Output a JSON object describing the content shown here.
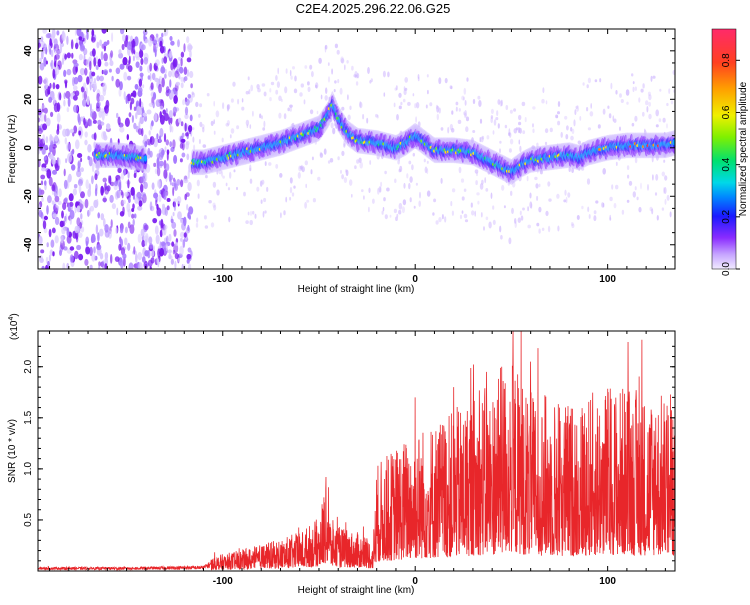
{
  "title": "C2E4.2025.296.22.06.G25",
  "colors": {
    "snr_line": "#e8262a",
    "spectrum_low": "#cdb4ff",
    "spectrum_mid": "#7a1cf0",
    "frame": "#000000"
  },
  "chart_data": [
    {
      "type": "heatmap",
      "name": "spectrogram",
      "xlabel": "Height of straight line (km)",
      "ylabel": "Frequency (Hz)",
      "xlim": [
        -196,
        135
      ],
      "ylim": [
        -50,
        49
      ],
      "xticks": [
        -100,
        0,
        100
      ],
      "xtick_labels": [
        "-100",
        "0",
        "100"
      ],
      "yticks": [
        -40,
        -20,
        0,
        20,
        40
      ],
      "ytick_labels": [
        "-40",
        "-20",
        "0",
        "20",
        "40"
      ],
      "noise_region_km": [
        -196,
        -116
      ],
      "ridge": {
        "x": [
          -166,
          -155,
          -145,
          -140,
          -116,
          -110,
          -100,
          -90,
          -80,
          -70,
          -60,
          -50,
          -45,
          -43,
          -40,
          -35,
          -30,
          -20,
          -10,
          -5,
          0,
          5,
          10,
          20,
          30,
          35,
          40,
          45,
          50,
          55,
          60,
          70,
          80,
          85,
          90,
          100,
          110,
          120,
          130,
          135
        ],
        "y": [
          -3,
          -3,
          -4,
          -5,
          -6,
          -6,
          -4,
          -2,
          0,
          2,
          5,
          8,
          14,
          18,
          12,
          6,
          3,
          2,
          0,
          2,
          5,
          2,
          -1,
          -1,
          -2,
          -4,
          -6,
          -8,
          -10,
          -7,
          -5,
          -4,
          -3,
          -4,
          -2,
          0,
          1,
          1,
          1,
          2
        ]
      },
      "colorbar": {
        "label": "Normalized spectral amplitude",
        "ticks": [
          0.0,
          0.2,
          0.4,
          0.6,
          0.8
        ],
        "tick_labels": [
          "0.0",
          "0.2",
          "0.4",
          "0.6",
          "0.8"
        ],
        "range": [
          0,
          0.92
        ]
      }
    },
    {
      "type": "line",
      "name": "snr",
      "xlabel": "Height of straight line (km)",
      "ylabel": "SNR (10 * v/v)",
      "scale_label": "(x10",
      "scale_exponent": "4",
      "scale_close": ")",
      "xlim": [
        -196,
        135
      ],
      "ylim": [
        0,
        2.35
      ],
      "xticks": [
        -100,
        0,
        100
      ],
      "xtick_labels": [
        "-100",
        "0",
        "100"
      ],
      "yticks": [
        0.5,
        1.0,
        1.5,
        2.0
      ],
      "ytick_labels": [
        "0.5",
        "1.0",
        "1.5",
        "2.0"
      ],
      "envelope": {
        "x": [
          -196,
          -150,
          -110,
          -106,
          -90,
          -70,
          -60,
          -50,
          -46,
          -44,
          -40,
          -25,
          -22,
          -20,
          -10,
          0,
          10,
          20,
          30,
          40,
          45,
          50,
          55,
          60,
          70,
          80,
          90,
          100,
          110,
          120,
          130,
          135
        ],
        "y": [
          0.03,
          0.03,
          0.04,
          0.08,
          0.12,
          0.18,
          0.22,
          0.3,
          0.55,
          0.3,
          0.25,
          0.2,
          0.15,
          0.6,
          0.7,
          0.8,
          0.85,
          0.9,
          1.0,
          1.05,
          1.15,
          1.2,
          1.1,
          1.0,
          1.0,
          0.95,
          1.0,
          1.05,
          1.05,
          1.0,
          1.0,
          1.0
        ]
      },
      "peaks": {
        "x": [
          -45,
          0,
          20,
          37,
          45,
          55,
          60,
          75,
          125,
          133
        ],
        "y": [
          0.82,
          1.7,
          1.8,
          1.95,
          2.0,
          2.35,
          2.05,
          1.6,
          1.5,
          1.45
        ]
      }
    }
  ]
}
